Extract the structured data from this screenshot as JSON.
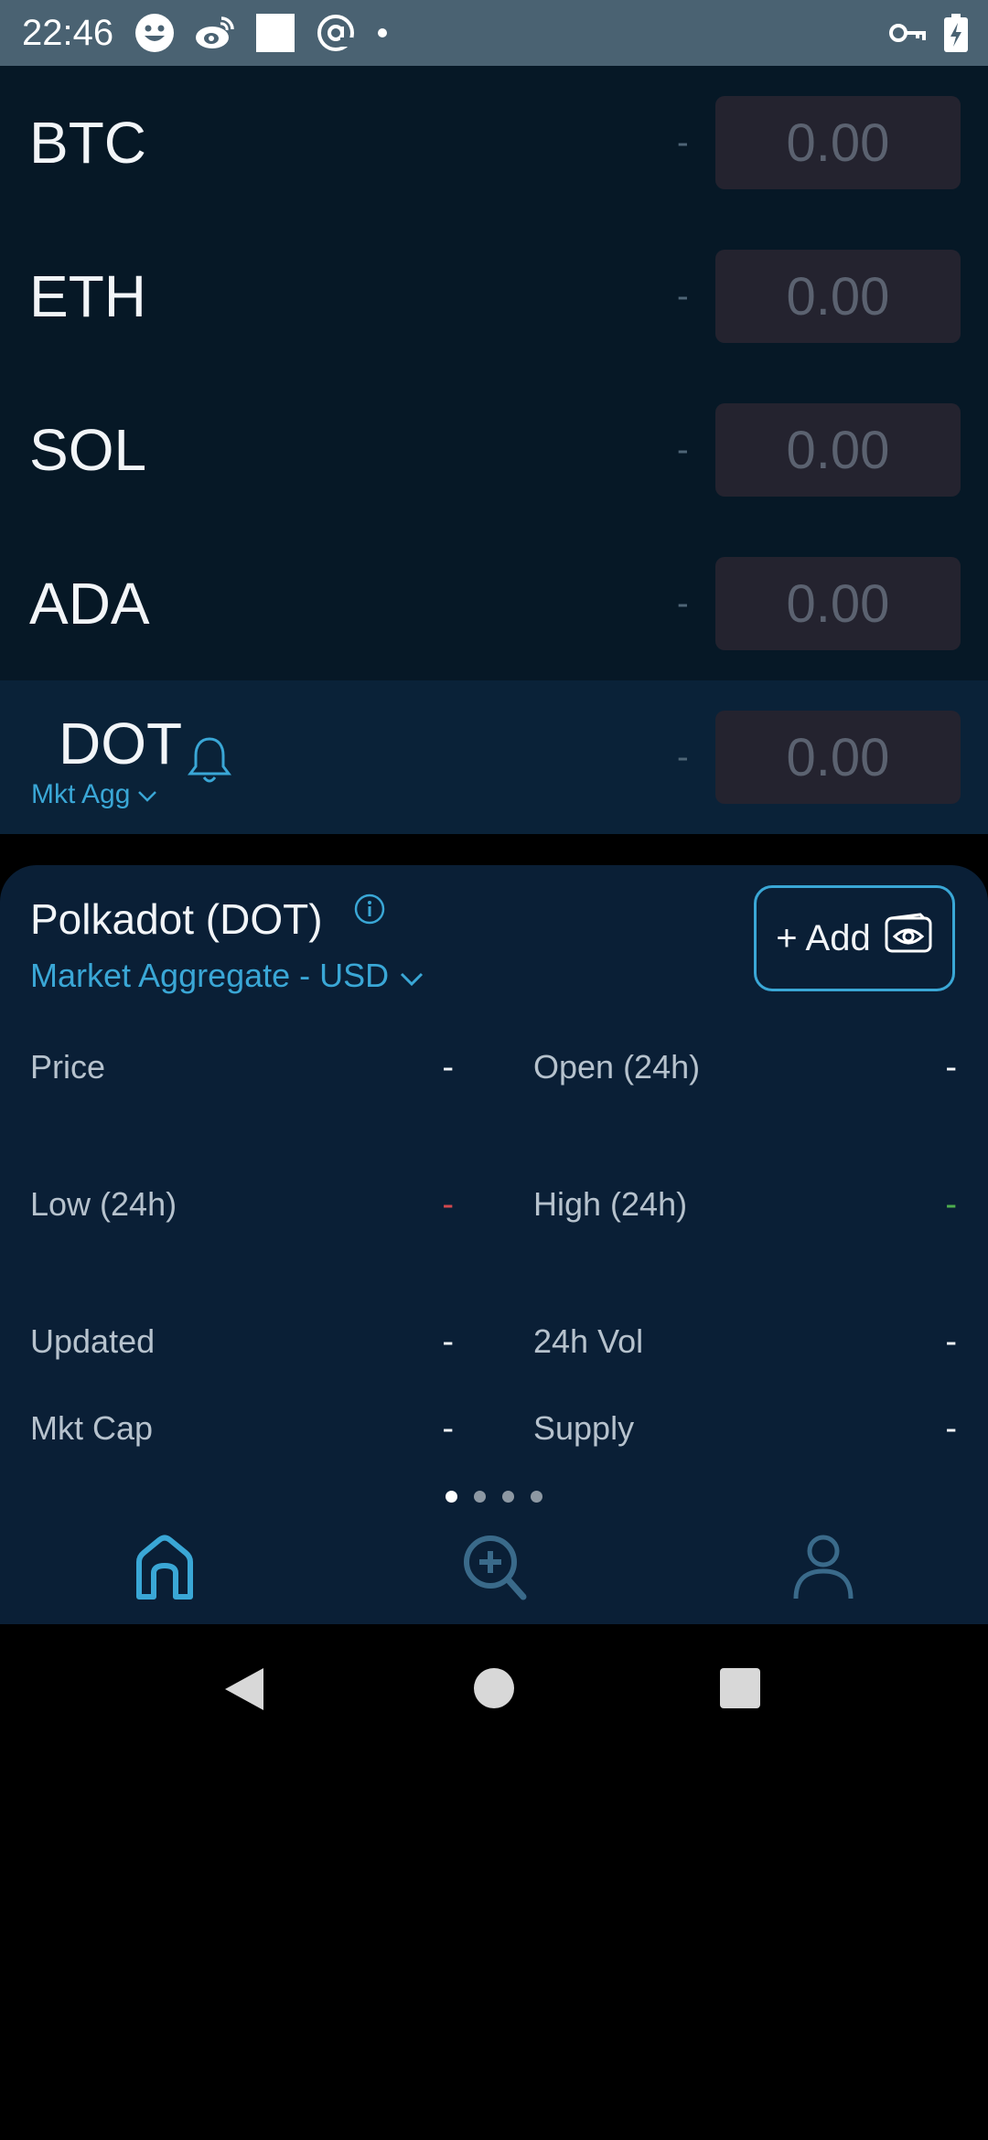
{
  "status_bar": {
    "time": "22:46"
  },
  "coins": [
    {
      "symbol": "BTC",
      "change": "-",
      "price": "0.00"
    },
    {
      "symbol": "ETH",
      "change": "-",
      "price": "0.00"
    },
    {
      "symbol": "SOL",
      "change": "-",
      "price": "0.00"
    },
    {
      "symbol": "ADA",
      "change": "-",
      "price": "0.00"
    },
    {
      "symbol": "DOT",
      "change": "-",
      "price": "0.00",
      "sub_label": "Mkt Agg"
    }
  ],
  "detail": {
    "title": "Polkadot (DOT)",
    "market": "Market Aggregate - USD",
    "add_label": "+ Add",
    "stats": {
      "price_label": "Price",
      "price_value": "-",
      "open_label": "Open (24h)",
      "open_value": "-",
      "low_label": "Low (24h)",
      "low_value": "-",
      "high_label": "High (24h)",
      "high_value": "-",
      "updated_label": "Updated",
      "updated_value": "-",
      "vol_label": "24h Vol",
      "vol_value": "-",
      "mktcap_label": "Mkt Cap",
      "mktcap_value": "-",
      "supply_label": "Supply",
      "supply_value": "-"
    }
  },
  "pager": {
    "count": 4,
    "active": 0
  },
  "colors": {
    "accent": "#3aa7d6",
    "background": "#061826",
    "panel": "#0a1f36",
    "price_box": "#24232f",
    "low_color": "#d2484e",
    "high_color": "#4eae4e"
  },
  "icons": [
    "smiley-icon",
    "weibo-icon",
    "square-icon",
    "at-icon",
    "dot-icon",
    "key-icon",
    "battery-icon",
    "bell-icon",
    "info-icon",
    "watchlist-eye-icon",
    "home-icon",
    "search-add-icon",
    "profile-icon",
    "back-icon",
    "home-circle-icon",
    "recents-icon"
  ]
}
